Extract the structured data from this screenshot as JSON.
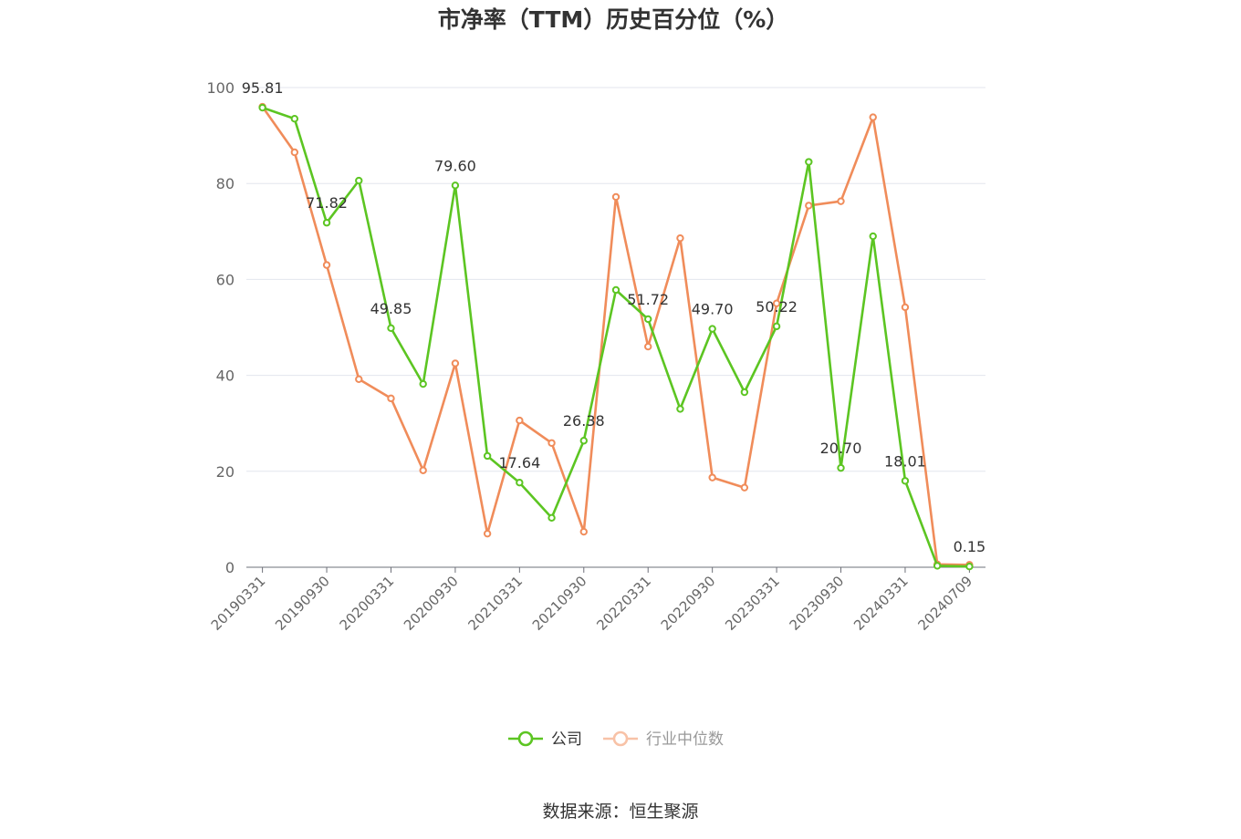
{
  "chart_data": {
    "type": "line",
    "title": "市净率（TTM）历史百分位（%）",
    "source": "数据来源：恒生聚源",
    "ylim": [
      0,
      100
    ],
    "yticks": [
      0,
      20,
      40,
      60,
      80,
      100
    ],
    "grid": true,
    "legend_position": "bottom-center",
    "x": [
      "20190331",
      "20190630",
      "20190930",
      "20191231",
      "20200331",
      "20200630",
      "20200930",
      "20201231",
      "20210331",
      "20210630",
      "20210930",
      "20211231",
      "20220331",
      "20220630",
      "20220930",
      "20221231",
      "20230331",
      "20230630",
      "20230930",
      "20231231",
      "20240331",
      "20240630",
      "20240709"
    ],
    "x_tick_labels": [
      "20190331",
      "20190930",
      "20200331",
      "20200930",
      "20210331",
      "20210930",
      "20220331",
      "20220930",
      "20230331",
      "20230930",
      "20240331",
      "20240709"
    ],
    "series": [
      {
        "name": "公司",
        "color": "#5cc522",
        "values": [
          95.81,
          93.5,
          71.82,
          80.6,
          49.85,
          38.2,
          79.6,
          23.2,
          17.64,
          10.3,
          26.38,
          57.8,
          51.72,
          33.0,
          49.7,
          36.5,
          50.22,
          84.5,
          20.7,
          69.0,
          18.01,
          0.3,
          0.15
        ],
        "labels": [
          "95.81",
          "",
          "71.82",
          "",
          "49.85",
          "",
          "79.60",
          "",
          "17.64",
          "",
          "26.38",
          "",
          "51.72",
          "",
          "49.70",
          "",
          "50.22",
          "",
          "20.70",
          "",
          "18.01",
          "",
          "0.15"
        ]
      },
      {
        "name": "行业中位数",
        "color": "#f08c5a",
        "values": [
          96.0,
          86.5,
          63.0,
          39.2,
          35.2,
          20.2,
          42.5,
          7.0,
          30.6,
          25.9,
          7.4,
          77.2,
          46.0,
          68.6,
          18.7,
          16.6,
          55.0,
          75.4,
          76.3,
          93.8,
          54.2,
          0.6,
          0.5
        ]
      }
    ]
  }
}
